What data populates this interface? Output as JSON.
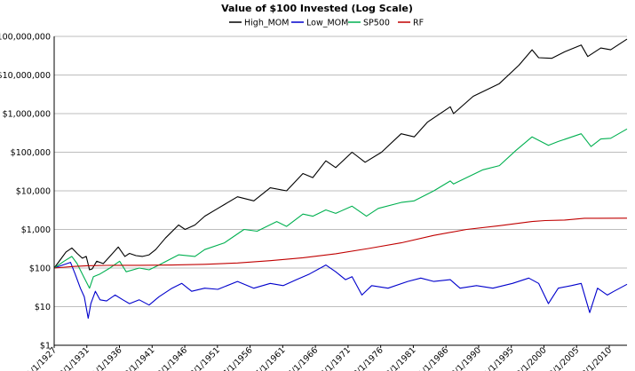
{
  "chart_data": {
    "type": "line",
    "title": "Value of $100 Invested (Log Scale)",
    "y_scale": "log",
    "ylim": [
      1,
      100000000
    ],
    "y_ticks": [
      1,
      10,
      100,
      1000,
      10000,
      100000,
      1000000,
      10000000,
      100000000
    ],
    "y_tick_labels": [
      "$1",
      "$10",
      "$100",
      "$1,000",
      "$10,000",
      "$100,000",
      "$1,000,000",
      "$10,000,000",
      "$100,000,000"
    ],
    "xlim": [
      1927.0,
      2014.5
    ],
    "x_tick_labels": [
      "1/1/1927",
      "12/1/1931",
      "11/1/1936",
      "10/1/1941",
      "9/1/1946",
      "8/1/1951",
      "7/1/1956",
      "6/1/1961",
      "5/1/1966",
      "4/1/1971",
      "3/1/1976",
      "2/1/1981",
      "1/1/1986",
      "12/1/1990",
      "11/1/1995",
      "10/1/2000",
      "9/1/2005",
      "8/1/2010"
    ],
    "grid": "horizontal",
    "legend_position": "top",
    "series": [
      {
        "name": "High_MOM",
        "color": "#000000",
        "points": [
          [
            1927.0,
            100
          ],
          [
            1928.0,
            170
          ],
          [
            1928.8,
            260
          ],
          [
            1929.7,
            330
          ],
          [
            1930.5,
            240
          ],
          [
            1931.3,
            180
          ],
          [
            1931.9,
            200
          ],
          [
            1932.4,
            90
          ],
          [
            1932.8,
            95
          ],
          [
            1933.5,
            150
          ],
          [
            1934.5,
            130
          ],
          [
            1935.5,
            200
          ],
          [
            1936.8,
            350
          ],
          [
            1937.8,
            200
          ],
          [
            1938.5,
            240
          ],
          [
            1939.5,
            210
          ],
          [
            1940.5,
            200
          ],
          [
            1941.5,
            220
          ],
          [
            1942.5,
            300
          ],
          [
            1944.0,
            600
          ],
          [
            1946.0,
            1300
          ],
          [
            1947.0,
            1000
          ],
          [
            1948.5,
            1300
          ],
          [
            1950.0,
            2200
          ],
          [
            1952.0,
            3500
          ],
          [
            1955.0,
            7000
          ],
          [
            1957.5,
            5500
          ],
          [
            1960.0,
            12000
          ],
          [
            1962.5,
            10000
          ],
          [
            1965.0,
            28000
          ],
          [
            1966.5,
            22000
          ],
          [
            1968.5,
            60000
          ],
          [
            1970.0,
            40000
          ],
          [
            1972.5,
            100000
          ],
          [
            1974.5,
            55000
          ],
          [
            1977.0,
            100000
          ],
          [
            1980.0,
            300000
          ],
          [
            1982.0,
            250000
          ],
          [
            1984.0,
            600000
          ],
          [
            1987.5,
            1500000
          ],
          [
            1988.0,
            1000000
          ],
          [
            1991.0,
            2800000
          ],
          [
            1995.0,
            6000000
          ],
          [
            1998.0,
            18000000
          ],
          [
            2000.0,
            45000000
          ],
          [
            2001.0,
            28000000
          ],
          [
            2003.0,
            27000000
          ],
          [
            2005.0,
            40000000
          ],
          [
            2007.5,
            60000000
          ],
          [
            2008.5,
            30000000
          ],
          [
            2010.5,
            50000000
          ],
          [
            2012.0,
            45000000
          ],
          [
            2014.5,
            85000000
          ]
        ]
      },
      {
        "name": "Low_MOM",
        "color": "#0000cc",
        "points": [
          [
            1927.0,
            100
          ],
          [
            1928.3,
            120
          ],
          [
            1929.5,
            140
          ],
          [
            1930.2,
            70
          ],
          [
            1931.0,
            30
          ],
          [
            1931.6,
            18
          ],
          [
            1932.2,
            5
          ],
          [
            1932.6,
            12
          ],
          [
            1933.3,
            25
          ],
          [
            1934.0,
            15
          ],
          [
            1935.0,
            14
          ],
          [
            1936.3,
            20
          ],
          [
            1937.5,
            15
          ],
          [
            1938.5,
            12
          ],
          [
            1940.0,
            15
          ],
          [
            1941.5,
            11
          ],
          [
            1943.0,
            18
          ],
          [
            1945.0,
            30
          ],
          [
            1946.5,
            40
          ],
          [
            1948.0,
            25
          ],
          [
            1950.0,
            30
          ],
          [
            1952.0,
            28
          ],
          [
            1955.0,
            45
          ],
          [
            1957.5,
            30
          ],
          [
            1960.0,
            40
          ],
          [
            1962.0,
            35
          ],
          [
            1964.0,
            50
          ],
          [
            1966.0,
            70
          ],
          [
            1968.5,
            120
          ],
          [
            1970.0,
            80
          ],
          [
            1971.5,
            50
          ],
          [
            1972.5,
            60
          ],
          [
            1974.0,
            20
          ],
          [
            1975.5,
            35
          ],
          [
            1978.0,
            30
          ],
          [
            1981.0,
            45
          ],
          [
            1983.0,
            55
          ],
          [
            1985.0,
            45
          ],
          [
            1987.5,
            50
          ],
          [
            1989.0,
            30
          ],
          [
            1991.5,
            35
          ],
          [
            1994.0,
            30
          ],
          [
            1997.0,
            40
          ],
          [
            1999.5,
            55
          ],
          [
            2001.0,
            40
          ],
          [
            2002.5,
            12
          ],
          [
            2004.0,
            30
          ],
          [
            2006.0,
            35
          ],
          [
            2007.5,
            40
          ],
          [
            2008.8,
            7
          ],
          [
            2010.0,
            30
          ],
          [
            2011.5,
            20
          ],
          [
            2012.5,
            25
          ],
          [
            2014.5,
            38
          ]
        ]
      },
      {
        "name": "SP500",
        "color": "#00b050",
        "points": [
          [
            1927.0,
            100
          ],
          [
            1928.5,
            150
          ],
          [
            1929.7,
            200
          ],
          [
            1930.5,
            130
          ],
          [
            1931.5,
            60
          ],
          [
            1932.4,
            30
          ],
          [
            1933.0,
            60
          ],
          [
            1934.0,
            70
          ],
          [
            1935.5,
            100
          ],
          [
            1937.0,
            150
          ],
          [
            1938.0,
            80
          ],
          [
            1940.0,
            100
          ],
          [
            1941.5,
            90
          ],
          [
            1943.0,
            120
          ],
          [
            1946.0,
            220
          ],
          [
            1948.5,
            200
          ],
          [
            1950.0,
            300
          ],
          [
            1953.0,
            450
          ],
          [
            1956.0,
            1000
          ],
          [
            1958.0,
            900
          ],
          [
            1961.0,
            1600
          ],
          [
            1962.5,
            1200
          ],
          [
            1965.0,
            2500
          ],
          [
            1966.5,
            2200
          ],
          [
            1968.5,
            3200
          ],
          [
            1970.0,
            2600
          ],
          [
            1972.5,
            4000
          ],
          [
            1974.7,
            2200
          ],
          [
            1976.5,
            3500
          ],
          [
            1980.0,
            5000
          ],
          [
            1982.0,
            5500
          ],
          [
            1985.0,
            10000
          ],
          [
            1987.5,
            18000
          ],
          [
            1988.0,
            15000
          ],
          [
            1990.0,
            22000
          ],
          [
            1992.5,
            35000
          ],
          [
            1995.0,
            45000
          ],
          [
            1997.5,
            110000
          ],
          [
            2000.0,
            250000
          ],
          [
            2002.5,
            150000
          ],
          [
            2004.0,
            190000
          ],
          [
            2007.5,
            300000
          ],
          [
            2009.0,
            140000
          ],
          [
            2010.5,
            220000
          ],
          [
            2012.0,
            230000
          ],
          [
            2014.5,
            400000
          ]
        ]
      },
      {
        "name": "RF",
        "color": "#c00000",
        "points": [
          [
            1927.0,
            100
          ],
          [
            1930.0,
            110
          ],
          [
            1932.0,
            115
          ],
          [
            1935.0,
            117
          ],
          [
            1940.0,
            118
          ],
          [
            1945.0,
            120
          ],
          [
            1950.0,
            125
          ],
          [
            1955.0,
            135
          ],
          [
            1960.0,
            155
          ],
          [
            1965.0,
            185
          ],
          [
            1970.0,
            235
          ],
          [
            1975.0,
            320
          ],
          [
            1980.0,
            450
          ],
          [
            1985.0,
            700
          ],
          [
            1990.0,
            1000
          ],
          [
            1995.0,
            1250
          ],
          [
            2000.0,
            1600
          ],
          [
            2002.0,
            1700
          ],
          [
            2005.0,
            1750
          ],
          [
            2008.0,
            1950
          ],
          [
            2010.0,
            1950
          ],
          [
            2014.5,
            1960
          ]
        ]
      }
    ]
  }
}
